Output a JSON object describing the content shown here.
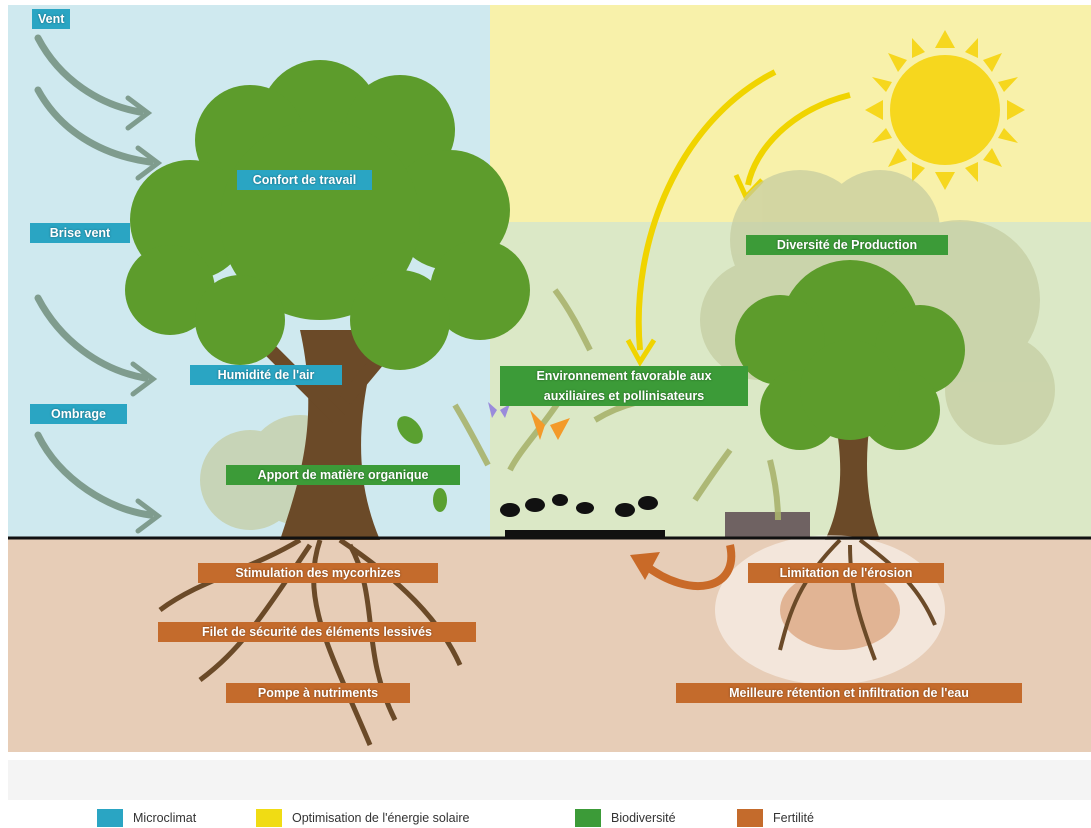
{
  "labels": {
    "microclimat": [
      "Vent",
      "Confort de travail",
      "Brise vent",
      "Humidité de l'air",
      "Ombrage"
    ],
    "biodiversite": [
      "Diversité de Production",
      "Apport de matière organique"
    ],
    "environnement": [
      "Environnement favorable aux",
      "auxiliaires et pollinisateurs"
    ],
    "fertilite": [
      "Stimulation des mycorhizes",
      "Filet de sécurité des éléments lessivés",
      "Pompe à nutriments",
      "Limitation de l'érosion",
      "Meilleure rétention et infiltration de l'eau"
    ]
  },
  "legend": [
    "Microclimat",
    "Optimisation de l'énergie solaire",
    "Biodiversité",
    "Fertilité"
  ]
}
